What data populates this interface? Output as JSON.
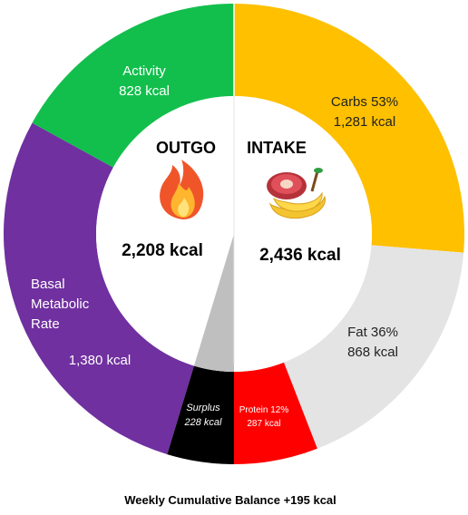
{
  "chart_data": {
    "type": "pie",
    "title": "Weekly Cumulative Balance +195 kcal",
    "outgo": {
      "label": "OUTGO",
      "total": "2,208 kcal",
      "segments": [
        {
          "name": "Activity",
          "value_label": "828 kcal",
          "kcal": 828,
          "color": "#12bf4c"
        },
        {
          "name": "Basal Metabolic Rate",
          "name_lines": [
            "Basal",
            "Metabolic",
            "Rate"
          ],
          "value_label": "1,380 kcal",
          "kcal": 1380,
          "color": "#7030a0"
        },
        {
          "name": "Surplus",
          "value_label": "228 kcal",
          "kcal": 228,
          "color": "#000000"
        }
      ]
    },
    "intake": {
      "label": "INTAKE",
      "total": "2,436 kcal",
      "segments": [
        {
          "name": "Carbs 53%",
          "value_label": "1,281 kcal",
          "kcal": 1281,
          "color": "#ffc000"
        },
        {
          "name": "Fat 36%",
          "value_label": "868 kcal",
          "kcal": 868,
          "color": "#e4e4e4"
        },
        {
          "name": "Protein 12%",
          "value_label": "287 kcal",
          "kcal": 287,
          "color": "#ff0000"
        }
      ]
    },
    "icons": {
      "outgo": "fire-icon",
      "intake": "food-icon"
    },
    "colors": {
      "inner_wedge": "#bfbfbf",
      "center": "#ffffff"
    }
  }
}
